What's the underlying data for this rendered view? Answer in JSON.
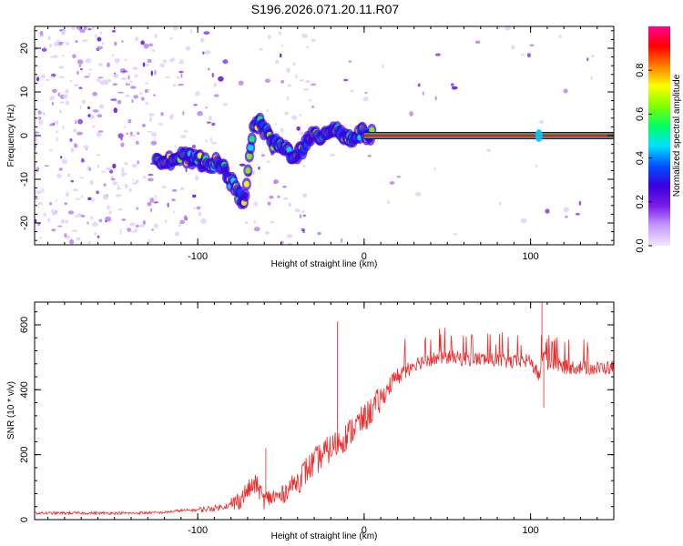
{
  "title": "S196.2026.071.20.11.R07",
  "chart_data": [
    {
      "type": "heatmap",
      "name": "spectrogram",
      "xlabel": "Height of straight line (km)",
      "ylabel": "Frequency (Hz)",
      "xlim": [
        -198,
        150
      ],
      "ylim": [
        -25,
        25
      ],
      "xticks": [
        -100,
        0,
        100
      ],
      "xtick_labels": [
        "-100",
        "0",
        "100"
      ],
      "yticks": [
        -20,
        -10,
        0,
        10,
        20
      ],
      "ytick_labels": [
        "-20",
        "-10",
        "0",
        "10",
        "20"
      ],
      "ridge": {
        "x": [
          -125,
          -118,
          -110,
          -102,
          -95,
          -88,
          -83,
          -78,
          -75,
          -72,
          -66,
          -62,
          -58,
          -54,
          -50,
          -46,
          -42,
          -38,
          -34,
          -30,
          -26,
          -22,
          -18,
          -15,
          -12,
          -8,
          -4,
          0,
          5,
          40,
          100,
          150
        ],
        "y": [
          -5,
          -5.5,
          -5,
          -5.5,
          -6,
          -6.5,
          -8,
          -12,
          -14,
          -14.5,
          3,
          2.5,
          0,
          -2,
          -2.5,
          -3.5,
          -4.5,
          -3.5,
          -1.5,
          0,
          0,
          1,
          2,
          1,
          0,
          -1,
          0.5,
          0.5,
          0,
          0,
          0,
          0
        ]
      },
      "colorbar": {
        "label": "Normalized spectral amplitude",
        "range": [
          0,
          1
        ],
        "ticks": [
          0,
          0.2,
          0.4,
          0.6,
          0.8
        ],
        "tick_labels": [
          "0.0",
          "0.2",
          "0.4",
          "0.6",
          "0.8"
        ],
        "colors": [
          "#f0e6ff",
          "#c69bff",
          "#7a1be8",
          "#3a00e0",
          "#0050ff",
          "#00e0ff",
          "#00ff60",
          "#80ff00",
          "#ffff00",
          "#ff8000",
          "#ff0000",
          "#ff0090"
        ]
      }
    },
    {
      "type": "line",
      "name": "snr",
      "xlabel": "Height of straight line (km)",
      "ylabel": "SNR (10 * v/v)",
      "xlim": [
        -198,
        150
      ],
      "ylim": [
        0,
        670
      ],
      "xticks": [
        -100,
        0,
        100
      ],
      "xtick_labels": [
        "-100",
        "0",
        "100"
      ],
      "yticks": [
        0,
        200,
        400,
        600
      ],
      "ytick_labels": [
        "0",
        "200",
        "400",
        "600"
      ],
      "series": [
        {
          "name": "SNR",
          "color": "#ee2b2b",
          "x": [
            -198,
            -180,
            -160,
            -140,
            -120,
            -110,
            -100,
            -90,
            -80,
            -75,
            -70,
            -65,
            -60,
            -55,
            -50,
            -45,
            -40,
            -35,
            -30,
            -25,
            -20,
            -15,
            -10,
            -5,
            0,
            5,
            10,
            15,
            20,
            25,
            30,
            40,
            50,
            60,
            70,
            80,
            90,
            100,
            105,
            108,
            110,
            115,
            120,
            130,
            140,
            150
          ],
          "y": [
            20,
            20,
            20,
            20,
            22,
            28,
            30,
            35,
            45,
            60,
            90,
            110,
            60,
            70,
            70,
            100,
            120,
            150,
            175,
            200,
            220,
            240,
            260,
            290,
            310,
            340,
            370,
            410,
            440,
            465,
            480,
            495,
            500,
            495,
            495,
            490,
            485,
            490,
            440,
            520,
            480,
            480,
            470,
            470,
            465,
            470
          ]
        }
      ],
      "spikes": [
        {
          "x": -59,
          "y": 220
        },
        {
          "x": -16,
          "y": 610
        },
        {
          "x": 107,
          "y": 670
        },
        {
          "x": 108,
          "y": 345
        }
      ]
    }
  ]
}
